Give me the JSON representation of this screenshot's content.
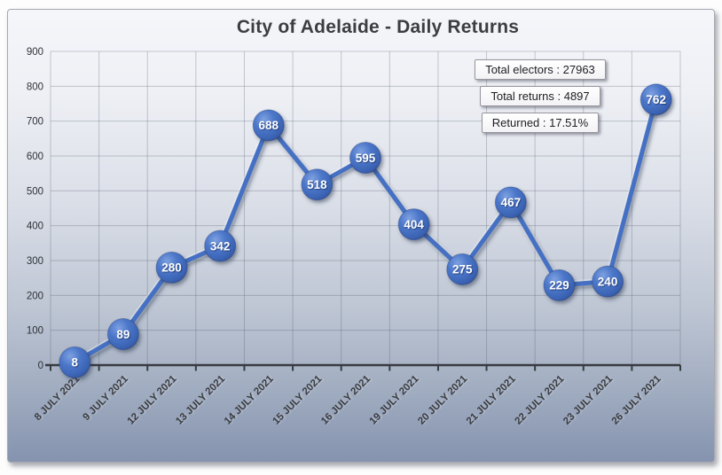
{
  "chart": {
    "stats": [
      "Total electors : 27963",
      "Total returns : 4897",
      "Returned : 17.51%"
    ]
  },
  "chart_data": {
    "type": "line",
    "title": "City of Adelaide - Daily Returns",
    "categories": [
      "8 JULY 2021",
      "9 JULY 2021",
      "12 JULY 2021",
      "13 JULY 2021",
      "14 JULY 2021",
      "15 JULY 2021",
      "16 JULY 2021",
      "19 JULY 2021",
      "20 JULY 2021",
      "21 JULY 2021",
      "22 JULY 2021",
      "23 JULY 2021",
      "26 JULY 2021"
    ],
    "values": [
      8,
      89,
      280,
      342,
      688,
      518,
      595,
      404,
      275,
      467,
      229,
      240,
      762
    ],
    "marker_labels_shown": true,
    "xlabel": "",
    "ylabel": "",
    "ylim": [
      0,
      900
    ],
    "yticks": [
      0,
      100,
      200,
      300,
      400,
      500,
      600,
      700,
      800,
      900
    ],
    "grid": true,
    "legend": null,
    "annotations": [
      "Total electors : 27963",
      "Total returns : 4897",
      "Returned : 17.51%"
    ],
    "colors": {
      "line": "#4470c3",
      "marker_fill": "#4472c4",
      "marker_text": "#ffffff",
      "axis": "#383b40",
      "gridline": "rgba(70,78,96,0.28)",
      "title_text": "#3d3d40",
      "bg_top": "#f5f6fa",
      "bg_bottom": "#8593af"
    }
  }
}
